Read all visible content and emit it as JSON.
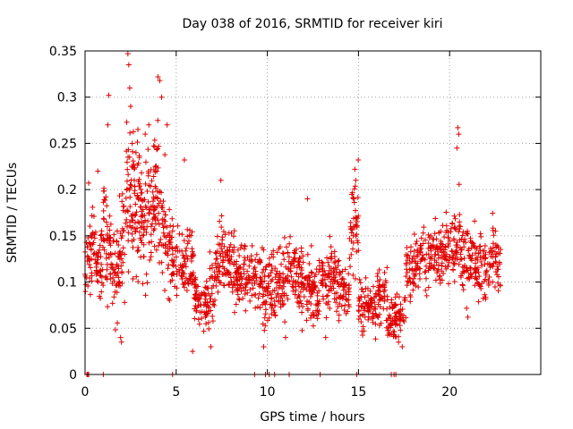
{
  "chart_data": {
    "type": "scatter",
    "title": "Day 038 of 2016, SRMTID for receiver kiri",
    "xlabel": "GPS time / hours",
    "ylabel": "SRMTID / TECUs",
    "xlim": [
      0,
      25
    ],
    "ylim": [
      0,
      0.35
    ],
    "x_ticks": [
      0,
      5,
      10,
      15,
      20
    ],
    "x_tick_labels": [
      "0",
      "5",
      "10",
      "15",
      "20"
    ],
    "y_ticks": [
      0,
      0.05,
      0.1,
      0.15,
      0.2,
      0.25,
      0.3,
      0.35
    ],
    "y_tick_labels": [
      "0",
      "0.05",
      "0.1",
      "0.15",
      "0.2",
      "0.25",
      "0.3",
      "0.35"
    ],
    "grid": true,
    "marker": "+",
    "color": "#e00000",
    "series": [
      {
        "name": "SRMTID",
        "segments": [
          {
            "x": [
              0.0,
              0.5
            ],
            "mean": [
              0.12,
              0.14
            ],
            "spread": 0.035,
            "n": 40
          },
          {
            "x": [
              0.5,
              1.0
            ],
            "mean": [
              0.14,
              0.11
            ],
            "spread": 0.04,
            "n": 45
          },
          {
            "x": [
              1.0,
              1.6
            ],
            "mean": [
              0.15,
              0.13
            ],
            "spread": 0.06,
            "n": 60
          },
          {
            "x": [
              1.6,
              2.2
            ],
            "mean": [
              0.11,
              0.14
            ],
            "spread": 0.05,
            "n": 55
          },
          {
            "x": [
              2.2,
              3.0
            ],
            "mean": [
              0.2,
              0.18
            ],
            "spread": 0.07,
            "n": 90
          },
          {
            "x": [
              3.0,
              3.8
            ],
            "mean": [
              0.16,
              0.19
            ],
            "spread": 0.06,
            "n": 80
          },
          {
            "x": [
              3.8,
              4.5
            ],
            "mean": [
              0.19,
              0.15
            ],
            "spread": 0.06,
            "n": 70
          },
          {
            "x": [
              4.5,
              5.5
            ],
            "mean": [
              0.13,
              0.12
            ],
            "spread": 0.035,
            "n": 80
          },
          {
            "x": [
              5.5,
              6.0
            ],
            "mean": [
              0.13,
              0.11
            ],
            "spread": 0.04,
            "n": 40
          },
          {
            "x": [
              6.0,
              6.8
            ],
            "mean": [
              0.08,
              0.07
            ],
            "spread": 0.025,
            "n": 70
          },
          {
            "x": [
              6.8,
              7.4
            ],
            "mean": [
              0.08,
              0.12
            ],
            "spread": 0.035,
            "n": 50
          },
          {
            "x": [
              7.4,
              8.2
            ],
            "mean": [
              0.13,
              0.12
            ],
            "spread": 0.035,
            "n": 70
          },
          {
            "x": [
              8.2,
              9.2
            ],
            "mean": [
              0.1,
              0.11
            ],
            "spread": 0.03,
            "n": 80
          },
          {
            "x": [
              9.2,
              10.2
            ],
            "mean": [
              0.11,
              0.09
            ],
            "spread": 0.035,
            "n": 80
          },
          {
            "x": [
              10.2,
              11.2
            ],
            "mean": [
              0.09,
              0.11
            ],
            "spread": 0.035,
            "n": 85
          },
          {
            "x": [
              11.2,
              12.0
            ],
            "mean": [
              0.12,
              0.1
            ],
            "spread": 0.04,
            "n": 70
          },
          {
            "x": [
              12.0,
              12.8
            ],
            "mean": [
              0.1,
              0.08
            ],
            "spread": 0.035,
            "n": 70
          },
          {
            "x": [
              12.8,
              13.8
            ],
            "mean": [
              0.1,
              0.11
            ],
            "spread": 0.03,
            "n": 80
          },
          {
            "x": [
              13.8,
              14.5
            ],
            "mean": [
              0.1,
              0.09
            ],
            "spread": 0.035,
            "n": 60
          },
          {
            "x": [
              14.5,
              15.0
            ],
            "mean": [
              0.15,
              0.16
            ],
            "spread": 0.045,
            "n": 45
          },
          {
            "x": [
              15.0,
              16.0
            ],
            "mean": [
              0.08,
              0.07
            ],
            "spread": 0.025,
            "n": 80
          },
          {
            "x": [
              16.0,
              16.6
            ],
            "mean": [
              0.09,
              0.08
            ],
            "spread": 0.03,
            "n": 45
          },
          {
            "x": [
              16.6,
              17.6
            ],
            "mean": [
              0.06,
              0.07
            ],
            "spread": 0.02,
            "n": 75
          },
          {
            "x": [
              17.6,
              18.6
            ],
            "mean": [
              0.11,
              0.13
            ],
            "spread": 0.03,
            "n": 80
          },
          {
            "x": [
              18.6,
              19.8
            ],
            "mean": [
              0.12,
              0.13
            ],
            "spread": 0.03,
            "n": 95
          },
          {
            "x": [
              19.8,
              20.6
            ],
            "mean": [
              0.13,
              0.15
            ],
            "spread": 0.035,
            "n": 65
          },
          {
            "x": [
              20.6,
              21.4
            ],
            "mean": [
              0.12,
              0.13
            ],
            "spread": 0.03,
            "n": 65
          },
          {
            "x": [
              21.4,
              22.2
            ],
            "mean": [
              0.11,
              0.12
            ],
            "spread": 0.03,
            "n": 65
          },
          {
            "x": [
              22.2,
              22.8
            ],
            "mean": [
              0.13,
              0.12
            ],
            "spread": 0.03,
            "n": 45
          }
        ],
        "peaks": [
          {
            "x": 2.35,
            "y": 0.347
          },
          {
            "x": 2.4,
            "y": 0.335
          },
          {
            "x": 2.45,
            "y": 0.31
          },
          {
            "x": 2.5,
            "y": 0.29
          },
          {
            "x": 1.3,
            "y": 0.302
          },
          {
            "x": 1.25,
            "y": 0.27
          },
          {
            "x": 4.0,
            "y": 0.322
          },
          {
            "x": 4.1,
            "y": 0.318
          },
          {
            "x": 4.2,
            "y": 0.3
          },
          {
            "x": 3.5,
            "y": 0.27
          },
          {
            "x": 3.3,
            "y": 0.26
          },
          {
            "x": 4.5,
            "y": 0.27
          },
          {
            "x": 2.9,
            "y": 0.265
          },
          {
            "x": 20.45,
            "y": 0.267
          },
          {
            "x": 20.5,
            "y": 0.26
          },
          {
            "x": 20.4,
            "y": 0.245
          },
          {
            "x": 14.8,
            "y": 0.222
          },
          {
            "x": 14.85,
            "y": 0.21
          },
          {
            "x": 5.45,
            "y": 0.232
          },
          {
            "x": 7.45,
            "y": 0.21
          },
          {
            "x": 6.9,
            "y": 0.03
          },
          {
            "x": 5.9,
            "y": 0.025
          },
          {
            "x": 2.0,
            "y": 0.035
          },
          {
            "x": 1.95,
            "y": 0.04
          },
          {
            "x": 17.4,
            "y": 0.03
          },
          {
            "x": 17.2,
            "y": 0.035
          },
          {
            "x": 21.0,
            "y": 0.062
          },
          {
            "x": 13.2,
            "y": 0.04
          },
          {
            "x": 9.8,
            "y": 0.03
          },
          {
            "x": 11.0,
            "y": 0.04
          },
          {
            "x": 0.2,
            "y": 0.207
          },
          {
            "x": 0.7,
            "y": 0.22
          },
          {
            "x": 12.2,
            "y": 0.19
          }
        ],
        "zero_points": [
          0.1,
          0.15,
          0.2,
          1.0,
          4.8,
          9.3,
          9.9,
          10.1,
          10.4,
          11.2,
          12.9,
          14.9,
          16.8,
          16.95,
          17.05
        ]
      }
    ]
  }
}
